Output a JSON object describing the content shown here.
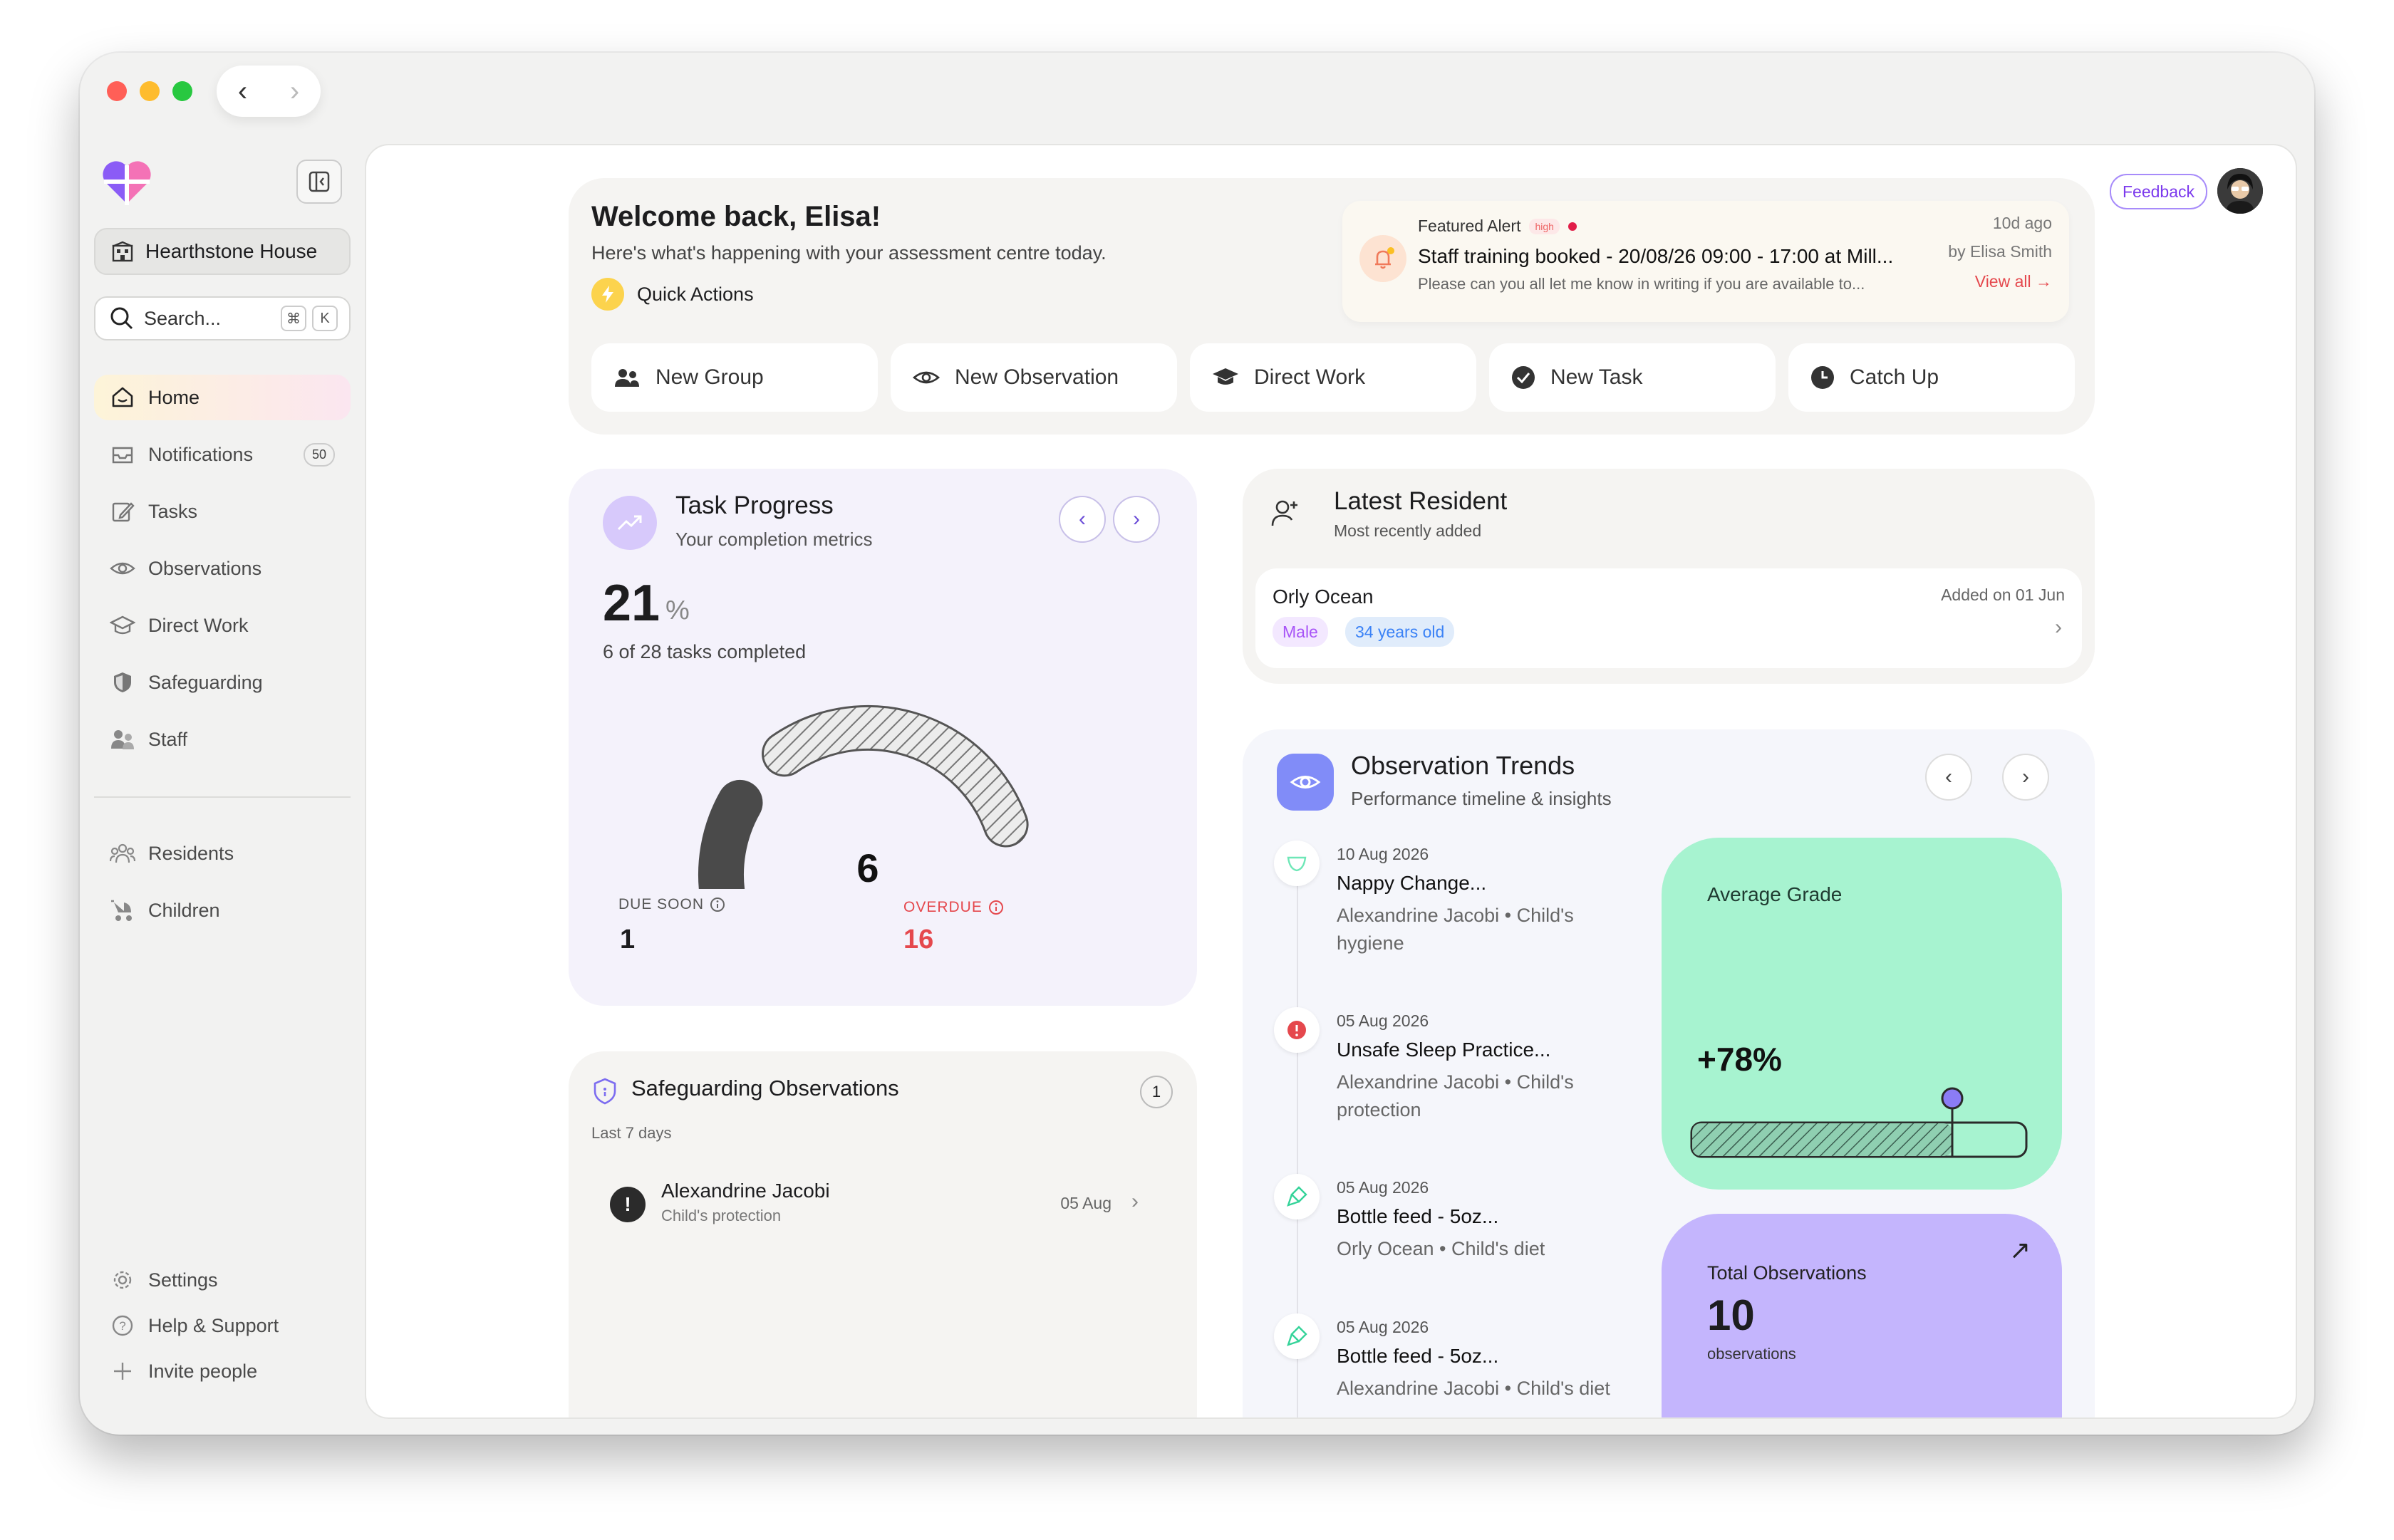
{
  "window": {
    "traffic_colors": [
      "#ff5f57",
      "#febc2e",
      "#28c840"
    ]
  },
  "sidebar": {
    "house": "Hearthstone House",
    "search_placeholder": "Search...",
    "search_keys": [
      "⌘",
      "K"
    ],
    "items": [
      {
        "label": "Home",
        "icon": "home-icon",
        "active": true
      },
      {
        "label": "Notifications",
        "icon": "inbox-icon",
        "badge": "50"
      },
      {
        "label": "Tasks",
        "icon": "pencil-icon"
      },
      {
        "label": "Observations",
        "icon": "eye-icon"
      },
      {
        "label": "Direct Work",
        "icon": "graduation-cap-icon"
      },
      {
        "label": "Safeguarding",
        "icon": "shield-icon"
      },
      {
        "label": "Staff",
        "icon": "staff-icon"
      }
    ],
    "items2": [
      {
        "label": "Residents",
        "icon": "residents-icon"
      },
      {
        "label": "Children",
        "icon": "stroller-icon"
      }
    ],
    "bottom": [
      {
        "label": "Settings",
        "icon": "gear-icon"
      },
      {
        "label": "Help & Support",
        "icon": "help-icon"
      },
      {
        "label": "Invite people",
        "icon": "plus-icon"
      }
    ]
  },
  "header": {
    "feedback": "Feedback"
  },
  "welcome": {
    "title": "Welcome back, Elisa!",
    "subtitle": "Here's what's happening with your assessment centre today.",
    "quick_actions": "Quick Actions",
    "alert": {
      "label": "Featured Alert",
      "priority": "high",
      "title": "Staff training booked - 20/08/26 09:00 - 17:00 at Mill...",
      "description": "Please can you all let me know in writing if you are available to...",
      "ago": "10d ago",
      "by": "by Elisa Smith",
      "view_all": "View all →"
    },
    "actions": [
      {
        "label": "New Group",
        "icon": "group-icon"
      },
      {
        "label": "New Observation",
        "icon": "eye-icon"
      },
      {
        "label": "Direct Work",
        "icon": "graduation-cap-icon"
      },
      {
        "label": "New Task",
        "icon": "check-circle-icon"
      },
      {
        "label": "Catch Up",
        "icon": "clock-icon"
      }
    ]
  },
  "task_progress": {
    "title": "Task Progress",
    "subtitle": "Your completion metrics",
    "percent": "21",
    "percent_unit": "%",
    "completed_text": "6 of 28 tasks completed",
    "gauge_value": "6",
    "gauge_fraction": 0.21,
    "due_soon_label": "DUE SOON",
    "due_soon_value": "1",
    "overdue_label": "OVERDUE",
    "overdue_value": "16",
    "overdue_color": "#e5484d"
  },
  "safeguarding": {
    "title": "Safeguarding Observations",
    "count": "1",
    "range": "Last 7 days",
    "items": [
      {
        "name": "Alexandrine Jacobi",
        "category": "Child's protection",
        "date": "05 Aug"
      }
    ]
  },
  "latest_resident": {
    "title": "Latest Resident",
    "subtitle": "Most recently added",
    "name": "Orly Ocean",
    "gender": "Male",
    "age": "34 years old",
    "added": "Added on 01 Jun"
  },
  "trends": {
    "title": "Observation Trends",
    "subtitle": "Performance timeline & insights",
    "items": [
      {
        "date": "10 Aug 2026",
        "title": "Nappy Change...",
        "meta": "Alexandrine Jacobi • Child's hygiene",
        "icon": "nappy-icon"
      },
      {
        "date": "05 Aug 2026",
        "title": "Unsafe Sleep Practice...",
        "meta": "Alexandrine Jacobi • Child's protection",
        "icon": "alert-icon"
      },
      {
        "date": "05 Aug 2026",
        "title": "Bottle feed - 5oz...",
        "meta": "Orly Ocean • Child's diet",
        "icon": "bottle-icon"
      },
      {
        "date": "05 Aug 2026",
        "title": "Bottle feed - 5oz...",
        "meta": "Alexandrine Jacobi • Child's diet",
        "icon": "bottle-icon"
      }
    ],
    "average_grade_label": "Average Grade",
    "average_grade_value": "+78%",
    "average_grade_fraction": 0.78,
    "total_label": "Total Observations",
    "total_value": "10",
    "total_unit": "observations"
  }
}
